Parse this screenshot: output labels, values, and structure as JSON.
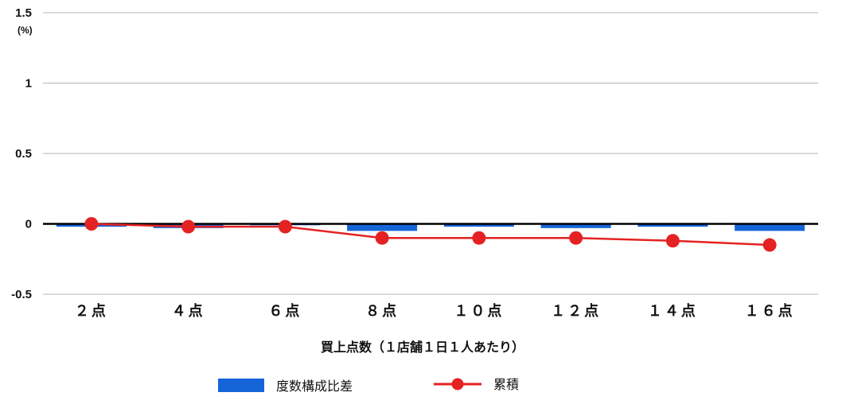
{
  "chart_data": {
    "type": "bar",
    "categories": [
      "２点",
      "４点",
      "６点",
      "８点",
      "１０点",
      "１２点",
      "１４点",
      "１６点"
    ],
    "series": [
      {
        "name": "度数構成比差",
        "type": "bar",
        "color": "#1565d8",
        "values": [
          -0.02,
          -0.03,
          -0.01,
          -0.05,
          -0.02,
          -0.03,
          -0.02,
          -0.05
        ]
      },
      {
        "name": "累積",
        "type": "line",
        "color": "#e52222",
        "values": [
          0.0,
          -0.02,
          -0.02,
          -0.1,
          -0.1,
          -0.1,
          -0.12,
          -0.15
        ]
      }
    ],
    "y_ticks": [
      "1.5",
      "1",
      "0.5",
      "0",
      "-0.5"
    ],
    "y_unit": "(%)",
    "ylim": [
      -0.5,
      1.5
    ],
    "xlabel": "買上点数（１店舗１日１人あたり）",
    "ylabel": "",
    "grid": true,
    "legend_position": "bottom"
  }
}
